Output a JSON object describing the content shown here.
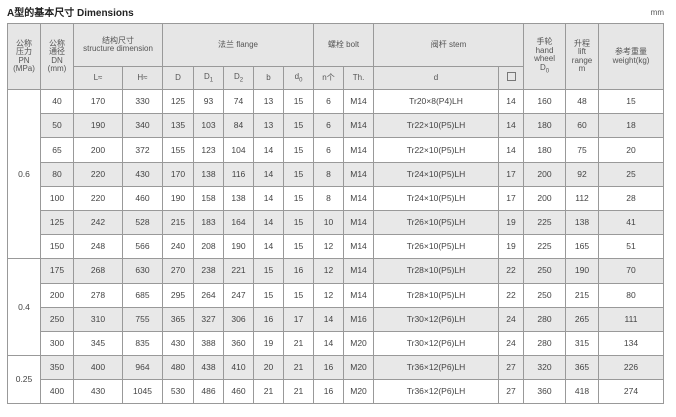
{
  "title": "A型的基本尺寸  Dimensions",
  "unit": "mm",
  "headers": {
    "pn": [
      "公称",
      "压力",
      "PN",
      "(MPa)"
    ],
    "dn": [
      "公称",
      "通径",
      "DN",
      "(mm)"
    ],
    "structure": [
      "结构尺寸",
      "structure dimension"
    ],
    "flange": "法兰 flange",
    "bolt": "螺栓 bolt",
    "stem": "阀杆 stem",
    "handwheel": [
      "手轮",
      "hand",
      "wheel",
      "D"
    ],
    "handwheel_sub": "0",
    "lift": [
      "升程",
      "lift",
      "range",
      "m"
    ],
    "weight": [
      "参考重量",
      "weight(kg)"
    ],
    "sub": {
      "L": "L≈",
      "H": "H≈",
      "D": "D",
      "D1": "D",
      "D1_sub": "1",
      "D2": "D",
      "D2_sub": "2",
      "b": "b",
      "d0": "d",
      "d0_sub": "0",
      "n": "n个",
      "Th": "Th.",
      "d": "d",
      "square": "□"
    }
  },
  "groups": [
    {
      "pn": "0.6",
      "rows": [
        [
          "40",
          "170",
          "330",
          "125",
          "93",
          "74",
          "13",
          "15",
          "6",
          "M14",
          "Tr20×8(P4)LH",
          "14",
          "160",
          "48",
          "15"
        ],
        [
          "50",
          "190",
          "340",
          "135",
          "103",
          "84",
          "13",
          "15",
          "6",
          "M14",
          "Tr22×10(P5)LH",
          "14",
          "180",
          "60",
          "18"
        ],
        [
          "65",
          "200",
          "372",
          "155",
          "123",
          "104",
          "14",
          "15",
          "6",
          "M14",
          "Tr22×10(P5)LH",
          "14",
          "180",
          "75",
          "20"
        ],
        [
          "80",
          "220",
          "430",
          "170",
          "138",
          "116",
          "14",
          "15",
          "8",
          "M14",
          "Tr24×10(P5)LH",
          "17",
          "200",
          "92",
          "25"
        ],
        [
          "100",
          "220",
          "460",
          "190",
          "158",
          "138",
          "14",
          "15",
          "8",
          "M14",
          "Tr24×10(P5)LH",
          "17",
          "200",
          "112",
          "28"
        ],
        [
          "125",
          "242",
          "528",
          "215",
          "183",
          "164",
          "14",
          "15",
          "10",
          "M14",
          "Tr26×10(P5)LH",
          "19",
          "225",
          "138",
          "41"
        ],
        [
          "150",
          "248",
          "566",
          "240",
          "208",
          "190",
          "14",
          "15",
          "12",
          "M14",
          "Tr26×10(P5)LH",
          "19",
          "225",
          "165",
          "51"
        ]
      ]
    },
    {
      "pn": "0.4",
      "rows": [
        [
          "175",
          "268",
          "630",
          "270",
          "238",
          "221",
          "15",
          "16",
          "12",
          "M14",
          "Tr28×10(P5)LH",
          "22",
          "250",
          "190",
          "70"
        ],
        [
          "200",
          "278",
          "685",
          "295",
          "264",
          "247",
          "15",
          "15",
          "12",
          "M14",
          "Tr28×10(P5)LH",
          "22",
          "250",
          "215",
          "80"
        ],
        [
          "250",
          "310",
          "755",
          "365",
          "327",
          "306",
          "16",
          "17",
          "14",
          "M16",
          "Tr30×12(P6)LH",
          "24",
          "280",
          "265",
          "111"
        ],
        [
          "300",
          "345",
          "835",
          "430",
          "388",
          "360",
          "19",
          "21",
          "14",
          "M20",
          "Tr30×12(P6)LH",
          "24",
          "280",
          "315",
          "134"
        ]
      ]
    },
    {
      "pn": "0.25",
      "rows": [
        [
          "350",
          "400",
          "964",
          "480",
          "438",
          "410",
          "20",
          "21",
          "16",
          "M20",
          "Tr36×12(P6)LH",
          "27",
          "320",
          "365",
          "226"
        ],
        [
          "400",
          "430",
          "1045",
          "530",
          "486",
          "460",
          "21",
          "21",
          "16",
          "M20",
          "Tr36×12(P6)LH",
          "27",
          "360",
          "418",
          "274"
        ]
      ]
    }
  ],
  "colors": {
    "header_bg": "#e6e6e6",
    "shaded_row": "#e8e8e8"
  }
}
